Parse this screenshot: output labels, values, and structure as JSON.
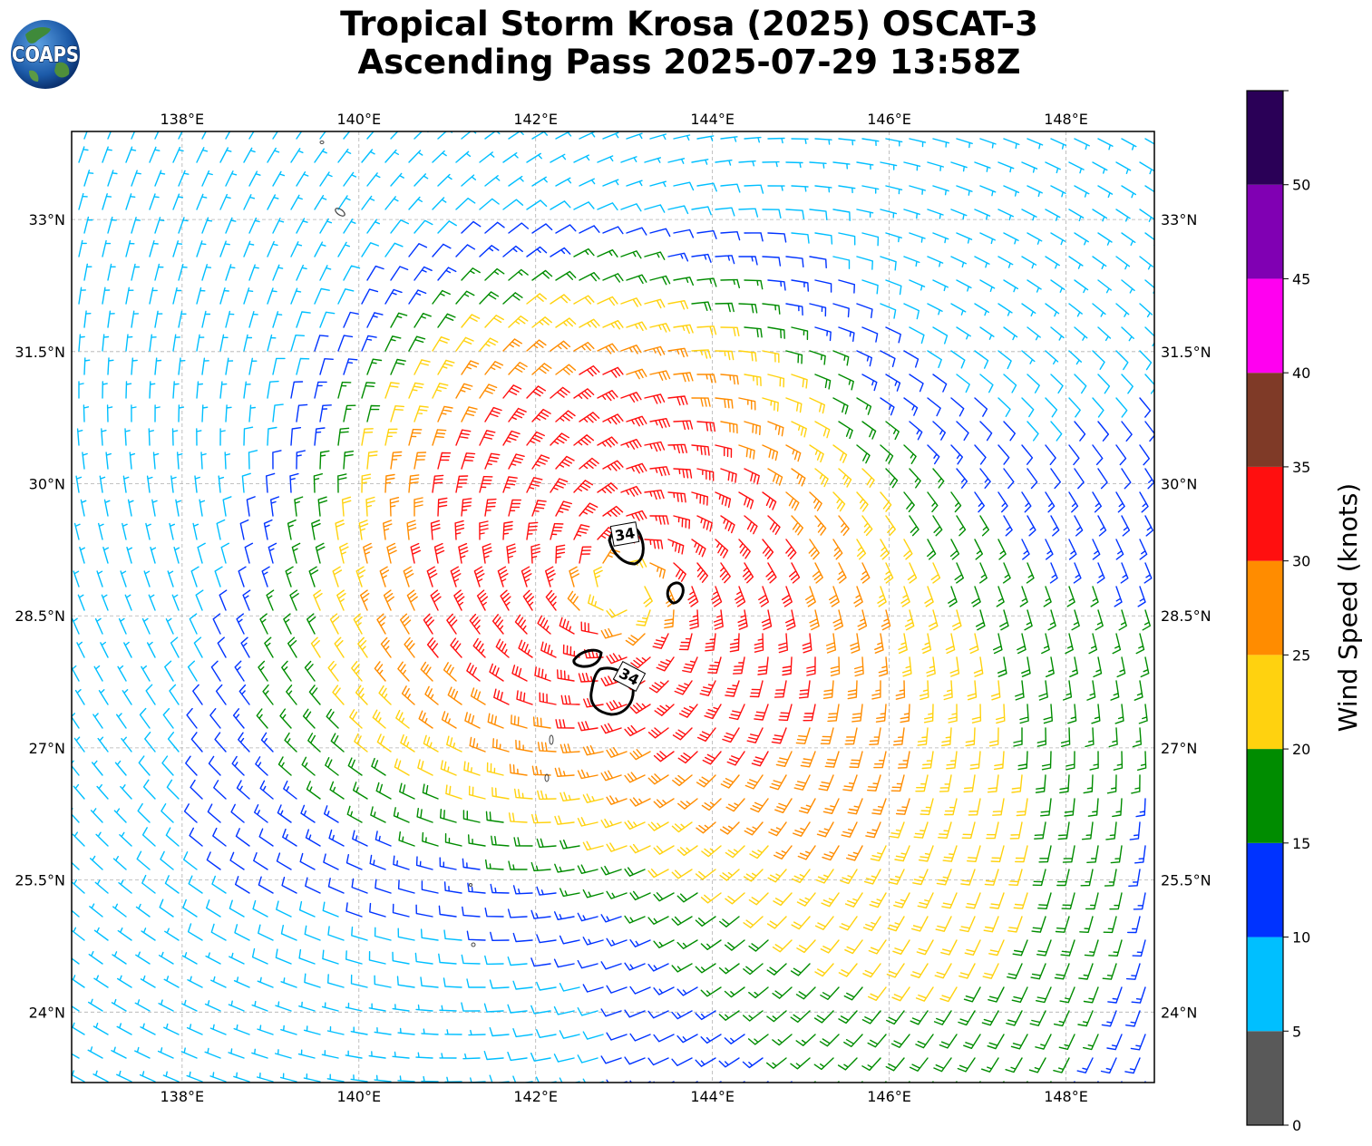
{
  "title": {
    "line1": "Tropical Storm Krosa (2025) OSCAT-3",
    "line2": "Ascending Pass 2025-07-29 13:58Z"
  },
  "logo": {
    "text": "COAPS",
    "icon": "globe-icon"
  },
  "map": {
    "lon_range": [
      136.75,
      149.0
    ],
    "lat_range": [
      23.2,
      34.0
    ],
    "x_ticks": [
      {
        "value": 138,
        "label": "138°E"
      },
      {
        "value": 140,
        "label": "140°E"
      },
      {
        "value": 142,
        "label": "142°E"
      },
      {
        "value": 144,
        "label": "144°E"
      },
      {
        "value": 146,
        "label": "146°E"
      },
      {
        "value": 148,
        "label": "148°E"
      }
    ],
    "y_ticks": [
      {
        "value": 24,
        "label": "24°N"
      },
      {
        "value": 25.5,
        "label": "25.5°N"
      },
      {
        "value": 27,
        "label": "27°N"
      },
      {
        "value": 28.5,
        "label": "28.5°N"
      },
      {
        "value": 30,
        "label": "30°N"
      },
      {
        "value": 31.5,
        "label": "31.5°N"
      },
      {
        "value": 33,
        "label": "33°N"
      }
    ],
    "storm_center": {
      "lon": 143.0,
      "lat": 28.8
    },
    "grid": true,
    "contour_label": "34"
  },
  "colorbar": {
    "label": "Wind Speed (knots)",
    "bins": [
      {
        "from": 0,
        "to": 5,
        "color": "#595959"
      },
      {
        "from": 5,
        "to": 10,
        "color": "#00bfff"
      },
      {
        "from": 10,
        "to": 15,
        "color": "#0033ff"
      },
      {
        "from": 15,
        "to": 20,
        "color": "#008c00"
      },
      {
        "from": 20,
        "to": 25,
        "color": "#ffd20f"
      },
      {
        "from": 25,
        "to": 30,
        "color": "#ff8c00"
      },
      {
        "from": 30,
        "to": 35,
        "color": "#ff0f0f"
      },
      {
        "from": 35,
        "to": 40,
        "color": "#7f3a27"
      },
      {
        "from": 40,
        "to": 45,
        "color": "#ff00f0"
      },
      {
        "from": 45,
        "to": 50,
        "color": "#8000b3"
      },
      {
        "from": 50,
        "to": 55,
        "color": "#2a0057"
      }
    ],
    "tick_labels": [
      "0",
      "5",
      "10",
      "15",
      "20",
      "25",
      "30",
      "35",
      "40",
      "45",
      "50"
    ]
  }
}
